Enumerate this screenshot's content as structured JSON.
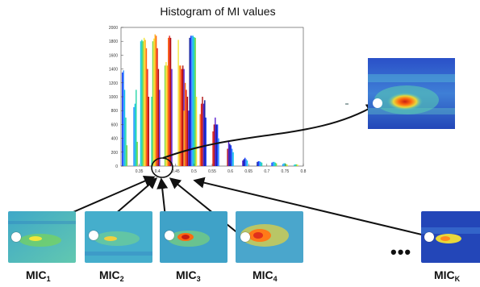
{
  "chart_data": {
    "type": "bar",
    "title": "Histogram of MI values",
    "xlabel": "",
    "ylabel": "",
    "xlim": [
      0.3,
      0.8
    ],
    "ylim": [
      0,
      2000
    ],
    "xticks": [
      "0.35",
      "0.4",
      "0.45",
      "0.5",
      "0.55",
      "0.6",
      "0.65",
      "0.7",
      "0.75",
      "0.8"
    ],
    "yticks": [
      "0",
      "200",
      "400",
      "600",
      "800",
      "1000",
      "1200",
      "1400",
      "1600",
      "1800",
      "2000"
    ],
    "groups": [
      {
        "x": 0.31,
        "values": [
          1350,
          1380,
          1100,
          700,
          300
        ]
      },
      {
        "x": 0.34,
        "values": [
          850,
          900,
          1100,
          350
        ]
      },
      {
        "x": 0.365,
        "values": [
          1800,
          1820,
          1800,
          1850,
          1820,
          1700,
          1400,
          1000
        ]
      },
      {
        "x": 0.395,
        "values": [
          1000,
          1800,
          1840,
          1900,
          1880,
          1700,
          1400,
          1100
        ]
      },
      {
        "x": 0.43,
        "values": [
          1450,
          1500,
          1450,
          1850,
          1880,
          1850,
          1400
        ]
      },
      {
        "x": 0.465,
        "values": [
          1820,
          1450,
          1450,
          1400,
          1450,
          1400
        ]
      },
      {
        "x": 0.49,
        "values": [
          800,
          1200,
          1100,
          1000,
          800,
          1850,
          1880,
          1880,
          1880,
          1860,
          1850,
          1000
        ]
      },
      {
        "x": 0.525,
        "values": [
          750,
          900,
          1000,
          900,
          950,
          700
        ]
      },
      {
        "x": 0.56,
        "values": [
          500,
          600,
          700,
          600,
          600,
          400
        ]
      },
      {
        "x": 0.6,
        "values": [
          250,
          350,
          320,
          300,
          250,
          200
        ]
      },
      {
        "x": 0.64,
        "values": [
          80,
          100,
          120,
          100,
          80
        ]
      },
      {
        "x": 0.68,
        "values": [
          60,
          70,
          70,
          60,
          50
        ]
      },
      {
        "x": 0.72,
        "values": [
          50,
          60,
          60,
          50,
          40
        ]
      },
      {
        "x": 0.75,
        "values": [
          30,
          40,
          40,
          30,
          20
        ]
      },
      {
        "x": 0.78,
        "values": [
          20,
          25,
          25,
          20
        ]
      }
    ],
    "legend": "none",
    "grid": false
  },
  "colors": {
    "palette": [
      "#1f3cff",
      "#2f8cff",
      "#17c6e8",
      "#27d6a8",
      "#7fd64a",
      "#f2e73a",
      "#ffb020",
      "#ff6a10",
      "#e0201b",
      "#b01010",
      "#5a1fd0",
      "#0a1a9c"
    ],
    "arrow": "#111111",
    "circle": "#111111"
  },
  "mics": [
    {
      "base": "MIC",
      "sub": "1",
      "heatmap": "low"
    },
    {
      "base": "MIC",
      "sub": "2",
      "heatmap": "low"
    },
    {
      "base": "MIC",
      "sub": "3",
      "heatmap": "medium"
    },
    {
      "base": "MIC",
      "sub": "4",
      "heatmap": "warm"
    },
    {
      "base": "MIC",
      "sub": "K",
      "heatmap": "cold"
    }
  ],
  "ellipsis": "•••",
  "big_image": {
    "heatmap": "hot"
  }
}
